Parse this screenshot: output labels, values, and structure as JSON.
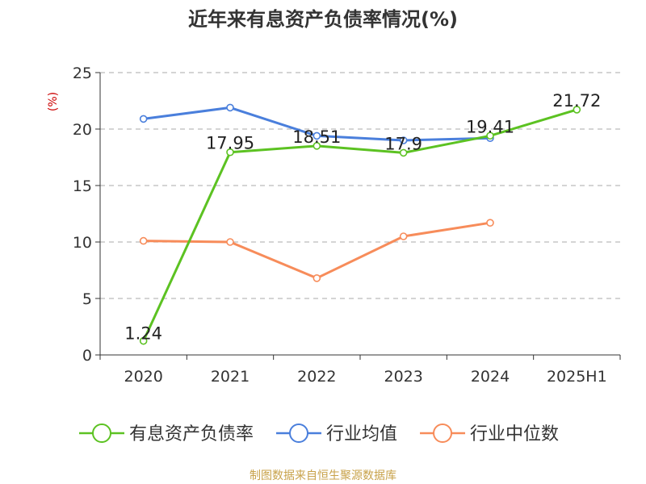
{
  "chart_data": {
    "type": "line",
    "title": "近年来有息资产负债率情况(%)",
    "y_unit_label": "(%)",
    "categories": [
      "2020",
      "2021",
      "2022",
      "2023",
      "2024",
      "2025H1"
    ],
    "ylim": [
      0,
      25
    ],
    "yticks": [
      0,
      5,
      10,
      15,
      20,
      25
    ],
    "grid": true,
    "legend_position": "bottom",
    "series": [
      {
        "name": "有息资产负债率",
        "color": "#5cc222",
        "values": [
          1.24,
          17.95,
          18.51,
          17.9,
          19.41,
          21.72
        ],
        "labels": [
          "1.24",
          "17.95",
          "18.51",
          "17.9",
          "19.41",
          "21.72"
        ],
        "show_labels": true
      },
      {
        "name": "行业均值",
        "color": "#4a7fdc",
        "values": [
          20.9,
          21.9,
          19.4,
          19.0,
          19.2,
          null
        ],
        "show_labels": false
      },
      {
        "name": "行业中位数",
        "color": "#f78c5a",
        "values": [
          10.1,
          10.0,
          6.8,
          10.5,
          11.7,
          null
        ],
        "show_labels": false
      }
    ]
  },
  "footer": {
    "source_text": "制图数据来自恒生聚源数据库"
  },
  "colors": {
    "title": "#333333",
    "axis": "#333333",
    "grid": "#bbbbbb",
    "unit_label": "#cc0000",
    "source": "#c8a24a"
  }
}
